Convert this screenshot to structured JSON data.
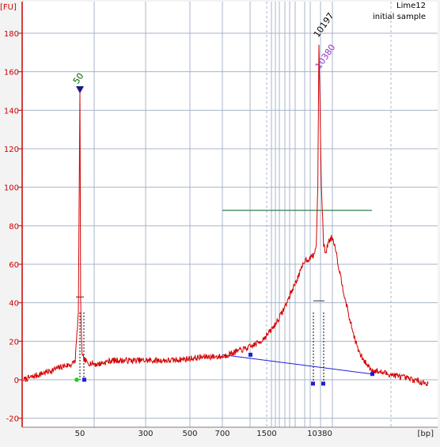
{
  "annotations": {
    "sample_name": "Lime12",
    "sample_desc": "initial sample"
  },
  "chart_data": {
    "type": "line",
    "title": "",
    "ylabel": "[FU]",
    "xlabel": "[bp]",
    "ylim": [
      -20,
      190
    ],
    "yticks": [
      -20,
      0,
      20,
      40,
      60,
      80,
      100,
      120,
      140,
      160,
      180
    ],
    "xtick_labels": [
      "50",
      "300",
      "500",
      "700",
      "1500",
      "10380"
    ],
    "grid": true,
    "colors": {
      "trace": "#d40000",
      "grid": "#a8b4c8",
      "axis": "#cc0000",
      "baseline": "#1f1fd6",
      "region_bar": "#2e7d52",
      "label_green": "#006400",
      "label_purple": "#9a33c0",
      "label_black": "#000000",
      "marker_blue": "#1f1fd6",
      "marker_green": "#22cc22"
    },
    "peak_labels": [
      {
        "text": "50",
        "x": 50,
        "y": 151
      },
      {
        "text": "10197",
        "x": 10197,
        "y": 174
      },
      {
        "text": "10380",
        "x": 10380,
        "y": 163
      }
    ],
    "region": {
      "x_start": 700,
      "x_end": 20000,
      "y": 88
    },
    "baseline_segment": {
      "x_start": 700,
      "y_start": 13,
      "x_end": 20000,
      "y_end": 3
    },
    "series": [
      {
        "values": [
          [
            24,
            0
          ],
          [
            30,
            3
          ],
          [
            35,
            5
          ],
          [
            40,
            7
          ],
          [
            45,
            8
          ],
          [
            47,
            10
          ],
          [
            49,
            35
          ],
          [
            50,
            150
          ],
          [
            51,
            40
          ],
          [
            53,
            12
          ],
          [
            60,
            9
          ],
          [
            80,
            8
          ],
          [
            120,
            10
          ],
          [
            180,
            10
          ],
          [
            250,
            10
          ],
          [
            300,
            10
          ],
          [
            400,
            10
          ],
          [
            500,
            11
          ],
          [
            600,
            12
          ],
          [
            700,
            12
          ],
          [
            800,
            14
          ],
          [
            1000,
            17
          ],
          [
            1300,
            20
          ],
          [
            1600,
            24
          ],
          [
            2000,
            28
          ],
          [
            2500,
            33
          ],
          [
            3000,
            38
          ],
          [
            3500,
            42
          ],
          [
            4000,
            46
          ],
          [
            5000,
            52
          ],
          [
            6000,
            57
          ],
          [
            7000,
            62
          ],
          [
            8000,
            63
          ],
          [
            9000,
            65
          ],
          [
            9500,
            70
          ],
          [
            9900,
            100
          ],
          [
            10197,
            174
          ],
          [
            10500,
            100
          ],
          [
            10800,
            70
          ],
          [
            11100,
            66
          ],
          [
            11500,
            72
          ],
          [
            12000,
            74
          ],
          [
            12500,
            70
          ],
          [
            13000,
            60
          ],
          [
            14000,
            45
          ],
          [
            15000,
            32
          ],
          [
            16000,
            22
          ],
          [
            17000,
            14
          ],
          [
            18000,
            10
          ],
          [
            20000,
            5
          ],
          [
            24000,
            2
          ],
          [
            30000,
            -2
          ]
        ]
      }
    ]
  }
}
